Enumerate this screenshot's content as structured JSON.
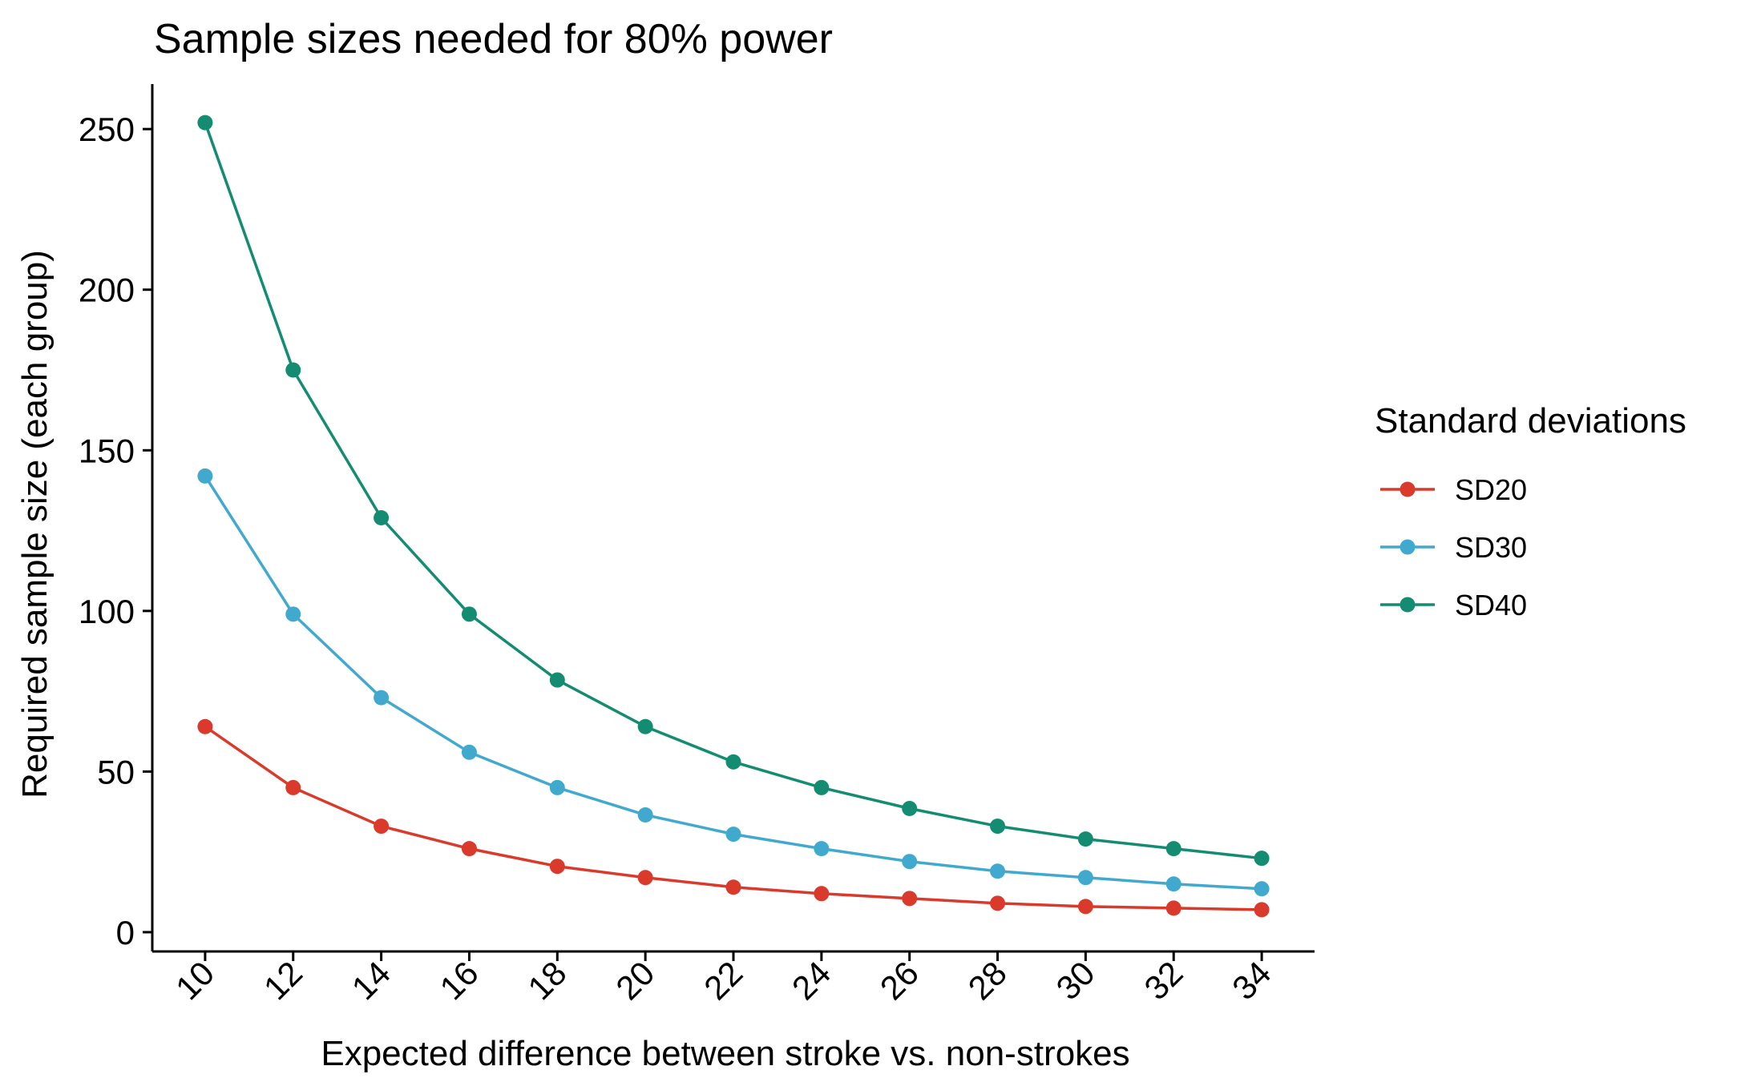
{
  "chart_data": {
    "type": "line",
    "title": "Sample sizes needed for 80% power",
    "xlabel": "Expected difference between stroke vs. non-strokes",
    "ylabel": "Required sample size (each group)",
    "x": [
      10,
      12,
      14,
      16,
      18,
      20,
      22,
      24,
      26,
      28,
      30,
      32,
      34
    ],
    "x_tick_labels": [
      "10",
      "12",
      "14",
      "16",
      "18",
      "20",
      "22",
      "24",
      "26",
      "28",
      "30",
      "32",
      "34"
    ],
    "xlim": [
      8.8,
      35.2
    ],
    "ylim": [
      -6,
      264
    ],
    "y_ticks": [
      0,
      50,
      100,
      150,
      200,
      250
    ],
    "y_tick_labels": [
      "0",
      "50",
      "100",
      "150",
      "200",
      "250"
    ],
    "grid": false,
    "legend": {
      "title": "Standard deviations",
      "position": "right"
    },
    "series": [
      {
        "name": "SD20",
        "color": "#D93A2B",
        "values": [
          64,
          45,
          33,
          26,
          20.5,
          17,
          14,
          12,
          10.5,
          9,
          8,
          7.5,
          7
        ]
      },
      {
        "name": "SD30",
        "color": "#41A9CE",
        "values": [
          142,
          99,
          73,
          56,
          45,
          36.5,
          30.5,
          26,
          22,
          19,
          17,
          15,
          13.5
        ]
      },
      {
        "name": "SD40",
        "color": "#138C72",
        "values": [
          252,
          175,
          129,
          99,
          78.5,
          64,
          53,
          45,
          38.5,
          33,
          29,
          26,
          23
        ]
      }
    ]
  }
}
